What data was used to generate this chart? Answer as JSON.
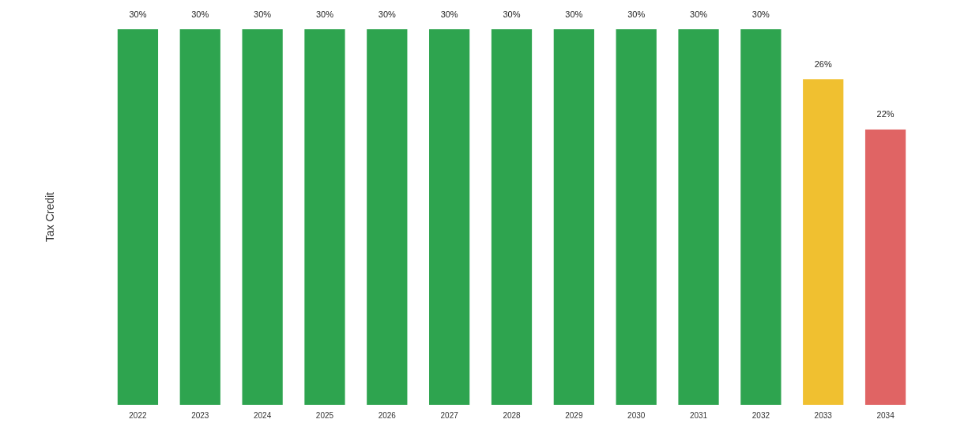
{
  "chart_data": {
    "type": "bar",
    "ylabel": "Tax Credit",
    "categories": [
      "2022",
      "2023",
      "2024",
      "2025",
      "2026",
      "2027",
      "2028",
      "2029",
      "2030",
      "2031",
      "2032",
      "2033",
      "2034"
    ],
    "values": [
      30,
      30,
      30,
      30,
      30,
      30,
      30,
      30,
      30,
      30,
      30,
      26,
      22
    ],
    "colors": [
      "#2ea44f",
      "#2ea44f",
      "#2ea44f",
      "#2ea44f",
      "#2ea44f",
      "#2ea44f",
      "#2ea44f",
      "#2ea44f",
      "#2ea44f",
      "#2ea44f",
      "#2ea44f",
      "#f0c030",
      "#e06464"
    ],
    "value_labels": [
      "30%",
      "30%",
      "30%",
      "30%",
      "30%",
      "30%",
      "30%",
      "30%",
      "30%",
      "30%",
      "30%",
      "26%",
      "22%"
    ]
  }
}
